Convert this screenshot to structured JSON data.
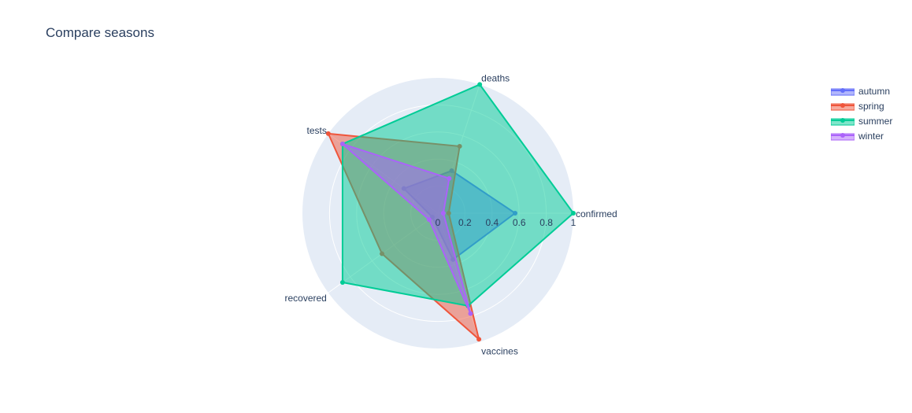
{
  "chart_data": {
    "type": "radar",
    "title": "Compare seasons",
    "axes": [
      "confirmed",
      "deaths",
      "tests",
      "recovered",
      "vaccines"
    ],
    "rlim": [
      0,
      1
    ],
    "radial_ticks": [
      "0",
      "0.2",
      "0.4",
      "0.6",
      "0.8",
      "1"
    ],
    "grid": true,
    "legend_position": "top-right",
    "series": [
      {
        "name": "autumn",
        "values": [
          0.57,
          0.33,
          0.31,
          0.05,
          0.36
        ],
        "color": "#636efa"
      },
      {
        "name": "spring",
        "values": [
          0.08,
          0.52,
          1.0,
          0.51,
          0.98
        ],
        "color": "#ef553b"
      },
      {
        "name": "summer",
        "values": [
          1.0,
          1.0,
          0.87,
          0.87,
          0.72
        ],
        "color": "#00cc96"
      },
      {
        "name": "winter",
        "values": [
          0.04,
          0.27,
          0.87,
          0.08,
          0.78
        ],
        "color": "#ab63fa"
      }
    ]
  }
}
